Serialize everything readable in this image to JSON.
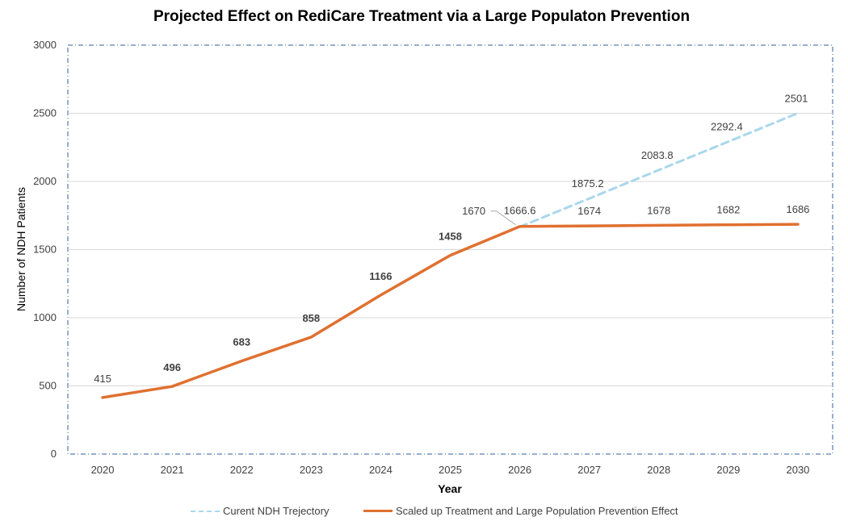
{
  "chart_data": {
    "type": "line",
    "title": "Projected Effect on RediCare Treatment via a Large Populaton Prevention",
    "xlabel": "Year",
    "ylabel": "Number of NDH Patients",
    "ylim": [
      0,
      3000
    ],
    "yticks": [
      0,
      500,
      1000,
      1500,
      2000,
      2500,
      3000
    ],
    "categories": [
      "2020",
      "2021",
      "2022",
      "2023",
      "2024",
      "2025",
      "2026",
      "2027",
      "2028",
      "2029",
      "2030"
    ],
    "series": [
      {
        "name": "Curent NDH Trejectory",
        "color": "#a9d7ec",
        "style": "dashed",
        "values": [
          null,
          null,
          null,
          null,
          null,
          null,
          1666.6,
          1875.2,
          2083.8,
          2292.4,
          2501
        ],
        "labels": [
          "",
          "",
          "",
          "",
          "",
          "",
          "1666.6",
          "1875.2",
          "2083.8",
          "2292.4",
          "2501"
        ]
      },
      {
        "name": "Scaled up Treatment and Large Population Prevention Effect",
        "color": "#e07030",
        "style": "solid",
        "values": [
          415,
          496,
          683,
          858,
          1166,
          1458,
          1670,
          1674,
          1678,
          1682,
          1686
        ],
        "labels": [
          "415",
          "496",
          "683",
          "858",
          "1166",
          "1458",
          "1670",
          "1674",
          "1678",
          "1682",
          "1686"
        ]
      }
    ],
    "grid": true
  }
}
